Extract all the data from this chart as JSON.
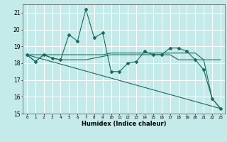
{
  "title": "",
  "xlabel": "Humidex (Indice chaleur)",
  "xlim": [
    -0.5,
    23.5
  ],
  "ylim": [
    15,
    21.5
  ],
  "yticks": [
    15,
    16,
    17,
    18,
    19,
    20,
    21
  ],
  "xticks": [
    0,
    1,
    2,
    3,
    4,
    5,
    6,
    7,
    8,
    9,
    10,
    11,
    12,
    13,
    14,
    15,
    16,
    17,
    18,
    19,
    20,
    21,
    22,
    23
  ],
  "background_color": "#c5eaea",
  "grid_color": "#ffffff",
  "line_color": "#1a6b5e",
  "series": [
    {
      "x": [
        0,
        1,
        2,
        3,
        4,
        5,
        6,
        7,
        8,
        9,
        10,
        11,
        12,
        13,
        14,
        15,
        16,
        17,
        18,
        19,
        20,
        21,
        22,
        23
      ],
      "y": [
        18.5,
        18.1,
        18.5,
        18.3,
        18.2,
        19.7,
        19.3,
        21.2,
        19.5,
        19.8,
        17.5,
        17.5,
        18.0,
        18.1,
        18.7,
        18.5,
        18.5,
        18.9,
        18.9,
        18.7,
        18.2,
        17.6,
        15.9,
        15.3
      ],
      "marker": "D",
      "markersize": 2.0,
      "linewidth": 0.8
    },
    {
      "x": [
        0,
        1,
        2,
        3,
        4,
        5,
        6,
        7,
        8,
        9,
        10,
        11,
        12,
        13,
        14,
        15,
        16,
        17,
        18,
        19,
        20,
        21,
        22,
        23
      ],
      "y": [
        18.5,
        18.5,
        18.5,
        18.5,
        18.5,
        18.5,
        18.5,
        18.5,
        18.5,
        18.5,
        18.6,
        18.6,
        18.6,
        18.6,
        18.6,
        18.6,
        18.6,
        18.6,
        18.6,
        18.6,
        18.6,
        18.2,
        18.2,
        18.2
      ],
      "marker": null,
      "markersize": 0,
      "linewidth": 0.8
    },
    {
      "x": [
        0,
        1,
        2,
        3,
        4,
        5,
        6,
        7,
        8,
        9,
        10,
        11,
        12,
        13,
        14,
        15,
        16,
        17,
        18,
        19,
        20,
        21,
        22,
        23
      ],
      "y": [
        18.5,
        18.1,
        18.5,
        18.3,
        18.2,
        18.2,
        18.2,
        18.2,
        18.3,
        18.4,
        18.5,
        18.5,
        18.5,
        18.5,
        18.5,
        18.5,
        18.5,
        18.5,
        18.2,
        18.2,
        18.2,
        18.2,
        15.9,
        15.3
      ],
      "marker": null,
      "markersize": 0,
      "linewidth": 0.8
    },
    {
      "x": [
        0,
        23
      ],
      "y": [
        18.5,
        15.3
      ],
      "marker": null,
      "markersize": 0,
      "linewidth": 0.8
    }
  ]
}
